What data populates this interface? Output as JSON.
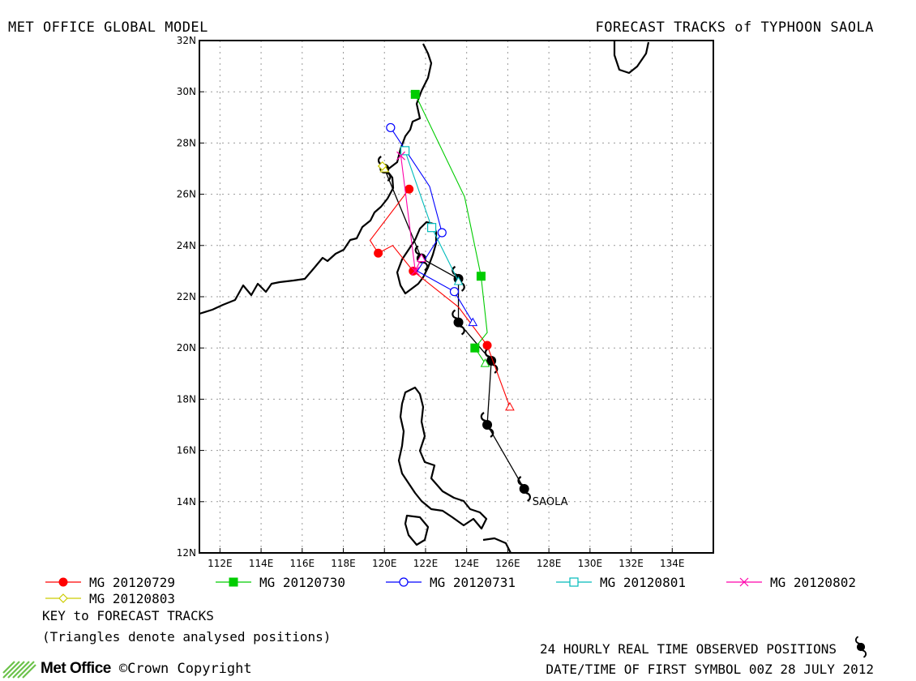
{
  "header": {
    "left_title": "MET OFFICE GLOBAL MODEL",
    "right_title": "FORECAST TRACKS of TYPHOON SAOLA"
  },
  "chart_data": {
    "type": "line",
    "title": "FORECAST TRACKS of TYPHOON SAOLA",
    "xlim": [
      111,
      136
    ],
    "ylim": [
      12,
      32
    ],
    "x_ticks": [
      "112E",
      "114E",
      "116E",
      "118E",
      "120E",
      "122E",
      "124E",
      "126E",
      "128E",
      "130E",
      "132E",
      "134E"
    ],
    "y_ticks": [
      "12N",
      "14N",
      "16N",
      "18N",
      "20N",
      "22N",
      "24N",
      "26N",
      "28N",
      "30N",
      "32N"
    ],
    "grid": true,
    "storm_label": "SAOLA",
    "observed_track": {
      "name": "24 HOURLY REAL TIME OBSERVED POSITIONS",
      "color": "#000000",
      "points": [
        [
          126.8,
          14.5
        ],
        [
          125.0,
          17.0
        ],
        [
          125.2,
          19.5
        ],
        [
          123.6,
          21.0
        ],
        [
          123.6,
          22.7
        ],
        [
          121.8,
          23.5
        ],
        [
          120.0,
          27.0
        ]
      ]
    },
    "series": [
      {
        "name": "MG 20120729",
        "color": "#ff0000",
        "marker": "filled-circle",
        "points": [
          [
            126.1,
            17.7
          ],
          [
            125.0,
            20.1
          ],
          [
            123.6,
            21.6
          ],
          [
            121.4,
            23.0
          ],
          [
            120.4,
            24.0
          ],
          [
            119.7,
            23.7
          ],
          [
            119.3,
            24.2
          ],
          [
            121.2,
            26.2
          ]
        ]
      },
      {
        "name": "MG 20120730",
        "color": "#00cc00",
        "marker": "filled-square",
        "points": [
          [
            124.9,
            19.4
          ],
          [
            124.4,
            20.0
          ],
          [
            125.0,
            20.6
          ],
          [
            124.7,
            22.8
          ],
          [
            123.9,
            25.9
          ],
          [
            121.5,
            29.9
          ]
        ]
      },
      {
        "name": "MG 20120731",
        "color": "#0000ff",
        "marker": "open-circle",
        "points": [
          [
            124.3,
            21.0
          ],
          [
            123.4,
            22.2
          ],
          [
            121.6,
            23.0
          ],
          [
            122.8,
            24.5
          ],
          [
            122.2,
            26.3
          ],
          [
            120.3,
            28.6
          ]
        ]
      },
      {
        "name": "MG 20120801",
        "color": "#00bbbb",
        "marker": "open-square",
        "points": [
          [
            123.6,
            22.6
          ],
          [
            122.3,
            24.7
          ],
          [
            121.0,
            27.7
          ]
        ]
      },
      {
        "name": "MG 20120802",
        "color": "#ff00aa",
        "marker": "cross",
        "points": [
          [
            121.8,
            23.5
          ],
          [
            121.5,
            23.0
          ],
          [
            120.8,
            27.5
          ]
        ]
      },
      {
        "name": "MG 20120803",
        "color": "#cccc00",
        "marker": "open-diamond",
        "points": [
          [
            120.0,
            27.0
          ],
          [
            119.9,
            27.1
          ]
        ]
      }
    ]
  },
  "footer": {
    "key_title": "KEY to FORECAST TRACKS",
    "key_note": "(Triangles denote analysed positions)",
    "observed_note": "24 HOURLY REAL TIME OBSERVED POSITIONS",
    "datetime_note": "DATE/TIME OF FIRST SYMBOL 00Z 28 JULY 2012",
    "logo_text": "Met Office",
    "copyright": "©Crown Copyright"
  }
}
